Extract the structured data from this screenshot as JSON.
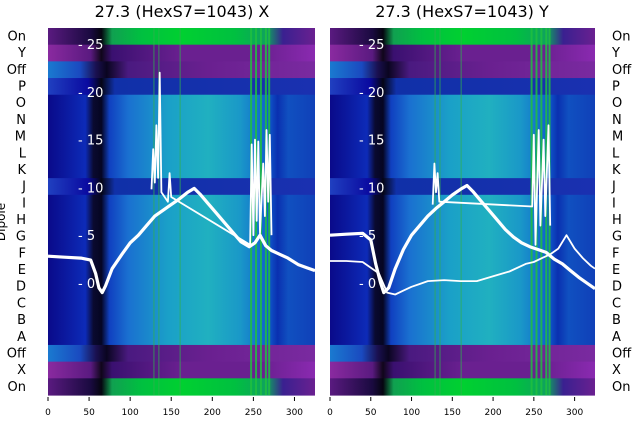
{
  "chart_data": [
    {
      "type": "heatmap",
      "title": "27.3 (HexS7=1043) X",
      "ylabel": "Dipole",
      "row_labels": [
        "On",
        "Y",
        "Off",
        "P",
        "O",
        "N",
        "M",
        "L",
        "K",
        "J",
        "I",
        "H",
        "G",
        "F",
        "E",
        "D",
        "C",
        "B",
        "A",
        "Off",
        "X",
        "On"
      ],
      "xticks": [
        0,
        50,
        100,
        150,
        200,
        250,
        300
      ],
      "xlim": [
        0,
        325
      ],
      "inner_yticks": [
        25,
        20,
        15,
        10,
        5,
        0
      ],
      "series": [
        {
          "name": "",
          "points": [
            [
              0,
              2.8
            ],
            [
              20,
              2.7
            ],
            [
              40,
              2.6
            ],
            [
              52,
              2.4
            ],
            [
              58,
              1.0
            ],
            [
              62,
              -0.5
            ],
            [
              66,
              -1.0
            ],
            [
              70,
              -0.3
            ],
            [
              78,
              1.5
            ],
            [
              90,
              3.0
            ],
            [
              100,
              4.2
            ],
            [
              110,
              5.0
            ],
            [
              120,
              6.0
            ],
            [
              130,
              7.0
            ],
            [
              140,
              7.6
            ],
            [
              150,
              8.2
            ],
            [
              160,
              8.8
            ],
            [
              170,
              9.5
            ],
            [
              178,
              9.9
            ],
            [
              185,
              9.3
            ],
            [
              195,
              8.3
            ],
            [
              205,
              7.3
            ],
            [
              215,
              6.3
            ],
            [
              225,
              5.3
            ],
            [
              235,
              4.3
            ],
            [
              245,
              3.8
            ],
            [
              252,
              4.2
            ],
            [
              258,
              5.0
            ],
            [
              265,
              3.9
            ],
            [
              272,
              3.4
            ],
            [
              282,
              3.0
            ],
            [
              292,
              2.6
            ],
            [
              305,
              1.9
            ],
            [
              315,
              1.6
            ],
            [
              325,
              1.3
            ]
          ]
        },
        {
          "name": "",
          "points": [
            [
              126,
              9.8
            ],
            [
              128,
              14.0
            ],
            [
              130,
              10.5
            ],
            [
              132,
              16.5
            ],
            [
              134,
              11.0
            ],
            [
              136,
              22.0
            ],
            [
              138,
              9.5
            ],
            [
              146,
              8.5
            ],
            [
              148,
              11.5
            ],
            [
              150,
              9.0
            ],
            [
              246,
              4.0
            ],
            [
              248,
              14.5
            ],
            [
              250,
              5.0
            ],
            [
              252,
              15.0
            ],
            [
              254,
              6.5
            ],
            [
              256,
              14.8
            ],
            [
              258,
              5.2
            ],
            [
              262,
              12.5
            ],
            [
              264,
              7.0
            ],
            [
              266,
              16.0
            ],
            [
              268,
              8.5
            ],
            [
              270,
              15.5
            ],
            [
              272,
              5.0
            ]
          ]
        }
      ]
    },
    {
      "type": "heatmap",
      "title": "27.3 (HexS7=1043) Y",
      "ylabel": "",
      "row_labels": [
        "On",
        "Y",
        "Off",
        "P",
        "O",
        "N",
        "M",
        "L",
        "K",
        "J",
        "I",
        "H",
        "G",
        "F",
        "E",
        "D",
        "C",
        "B",
        "A",
        "Off",
        "X",
        "On"
      ],
      "xticks": [
        0,
        50,
        100,
        150,
        200,
        250,
        300
      ],
      "xlim": [
        0,
        325
      ],
      "inner_yticks": [
        25,
        20,
        15,
        10,
        5,
        0
      ],
      "series": [
        {
          "name": "",
          "points": [
            [
              0,
              5.0
            ],
            [
              20,
              5.1
            ],
            [
              40,
              5.2
            ],
            [
              50,
              4.5
            ],
            [
              56,
              2.0
            ],
            [
              62,
              0.0
            ],
            [
              66,
              -1.0
            ],
            [
              72,
              -0.5
            ],
            [
              80,
              1.5
            ],
            [
              90,
              3.5
            ],
            [
              100,
              5.0
            ],
            [
              110,
              6.0
            ],
            [
              120,
              7.0
            ],
            [
              130,
              7.8
            ],
            [
              140,
              8.5
            ],
            [
              150,
              9.2
            ],
            [
              160,
              9.8
            ],
            [
              168,
              10.2
            ],
            [
              175,
              9.6
            ],
            [
              185,
              8.6
            ],
            [
              195,
              7.6
            ],
            [
              205,
              6.6
            ],
            [
              215,
              5.6
            ],
            [
              225,
              4.8
            ],
            [
              235,
              4.2
            ],
            [
              245,
              3.8
            ],
            [
              255,
              3.5
            ],
            [
              265,
              3.2
            ],
            [
              275,
              2.5
            ],
            [
              285,
              2.0
            ],
            [
              295,
              1.3
            ],
            [
              305,
              0.6
            ],
            [
              315,
              0.0
            ],
            [
              325,
              -0.6
            ]
          ]
        },
        {
          "name": "",
          "points": [
            [
              0,
              2.3
            ],
            [
              20,
              2.3
            ],
            [
              40,
              2.2
            ],
            [
              60,
              1.0
            ],
            [
              70,
              -1.0
            ],
            [
              80,
              -1.2
            ],
            [
              90,
              -0.8
            ],
            [
              100,
              -0.4
            ],
            [
              110,
              -0.1
            ],
            [
              120,
              0.2
            ],
            [
              140,
              0.3
            ],
            [
              160,
              0.2
            ],
            [
              180,
              0.2
            ],
            [
              200,
              0.7
            ],
            [
              220,
              1.2
            ],
            [
              240,
              2.0
            ],
            [
              250,
              2.2
            ],
            [
              260,
              2.6
            ],
            [
              270,
              3.0
            ],
            [
              280,
              3.6
            ],
            [
              290,
              5.0
            ],
            [
              300,
              3.6
            ],
            [
              310,
              2.6
            ],
            [
              320,
              1.8
            ],
            [
              325,
              1.5
            ]
          ]
        },
        {
          "name": "",
          "points": [
            [
              126,
              8.2
            ],
            [
              128,
              12.5
            ],
            [
              130,
              9.5
            ],
            [
              132,
              11.5
            ],
            [
              134,
              8.5
            ],
            [
              248,
              8.0
            ],
            [
              250,
              15.5
            ],
            [
              252,
              4.0
            ],
            [
              256,
              16.0
            ],
            [
              258,
              6.0
            ],
            [
              262,
              15.0
            ],
            [
              264,
              7.0
            ],
            [
              268,
              16.5
            ],
            [
              270,
              6.0
            ]
          ]
        }
      ]
    }
  ]
}
